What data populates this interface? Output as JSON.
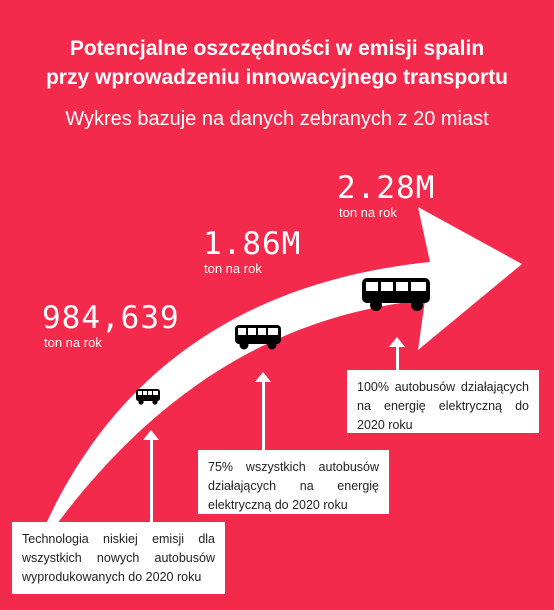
{
  "header": {
    "title_line1": "Potencjalne oszczędności w emisji spalin",
    "title_line2": "przy wprowadzeniu innowacyjnego transportu",
    "subtitle": "Wykres bazuje na danych zebranych z 20 miast"
  },
  "stages": [
    {
      "value": "984,639",
      "unit": "ton na rok",
      "description": "Technologia niskiej emisji dla wszystkich nowych autobusów wyprodukowanych do 2020 roku",
      "icon": "bus-icon-small"
    },
    {
      "value": "1.86M",
      "unit": "ton na rok",
      "description": "75% wszystkich autobusów działających na energię elektryczną do 2020 roku",
      "icon": "bus-icon-medium"
    },
    {
      "value": "2.28M",
      "unit": "ton na rok",
      "description": "100% autobusów działających na energię elektryczną do 2020 roku",
      "icon": "bus-icon-large"
    }
  ],
  "colors": {
    "background": "#f42a4d",
    "arrow": "#ffffff",
    "text_on_box": "#222222"
  }
}
